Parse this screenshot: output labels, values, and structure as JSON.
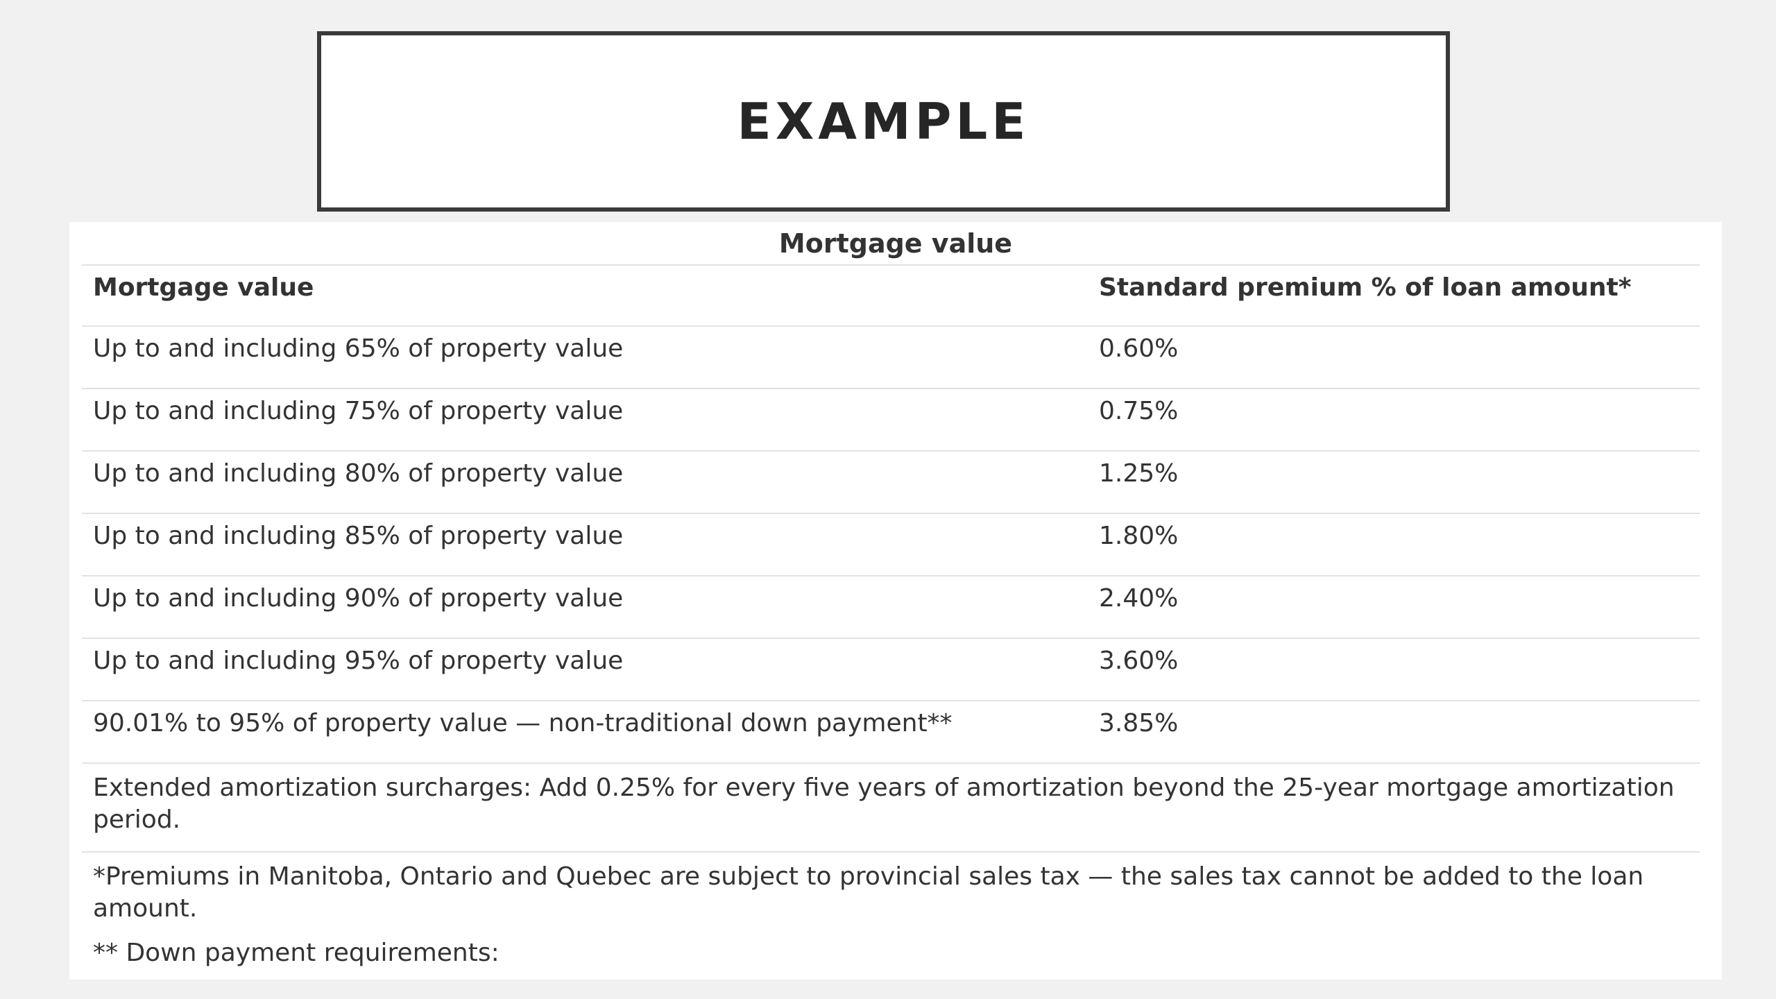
{
  "slide": {
    "title": "EXAMPLE"
  },
  "table": {
    "caption": "Mortgage value",
    "headers": [
      "Mortgage value",
      "Standard premium % of loan amount*"
    ],
    "rows": [
      [
        "Up to and including 65% of property value",
        "0.60%"
      ],
      [
        "Up to and including 75% of property value",
        "0.75%"
      ],
      [
        "Up to and including 80% of property value",
        "1.25%"
      ],
      [
        "Up to and including 85% of property value",
        "1.80%"
      ],
      [
        "Up to and including 90% of property value",
        "2.40%"
      ],
      [
        "Up to and including 95% of property value",
        "3.60%"
      ],
      [
        "90.01% to 95% of property value — non-traditional down payment**",
        "3.85%"
      ]
    ],
    "surcharge_note": "Extended amortization surcharges: Add 0.25% for every five years of amortization beyond the 25-year mortgage amortization period.",
    "footnote_tax": "*Premiums in Manitoba, Ontario and Quebec are subject to provincial sales tax — the sales tax cannot be added to the loan amount.",
    "footnote_down_payment": "** Down payment requirements:"
  }
}
